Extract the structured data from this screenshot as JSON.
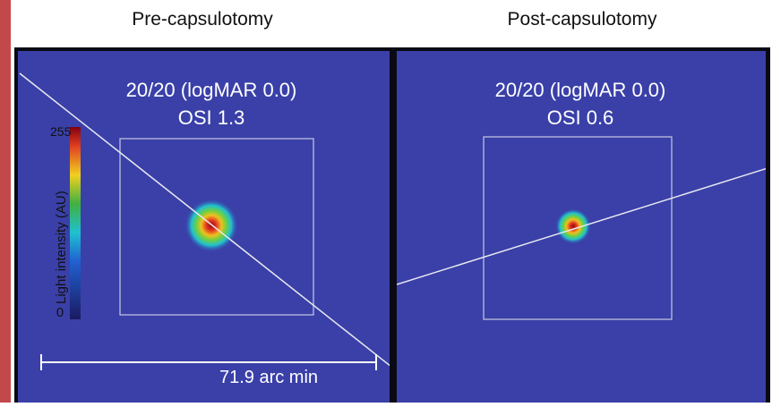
{
  "panels": [
    {
      "title": "Pre-capsulotomy",
      "acuity": "20/20 (logMAR 0.0)",
      "osi": "OSI 1.3"
    },
    {
      "title": "Post-capsulotomy",
      "acuity": "20/20 (logMAR 0.0)",
      "osi": "OSI 0.6"
    }
  ],
  "colorbar": {
    "max_label": "255",
    "min_label": "0",
    "label": "Light intensity (AU)"
  },
  "scale_bar": {
    "label": "71.9 arc min"
  }
}
